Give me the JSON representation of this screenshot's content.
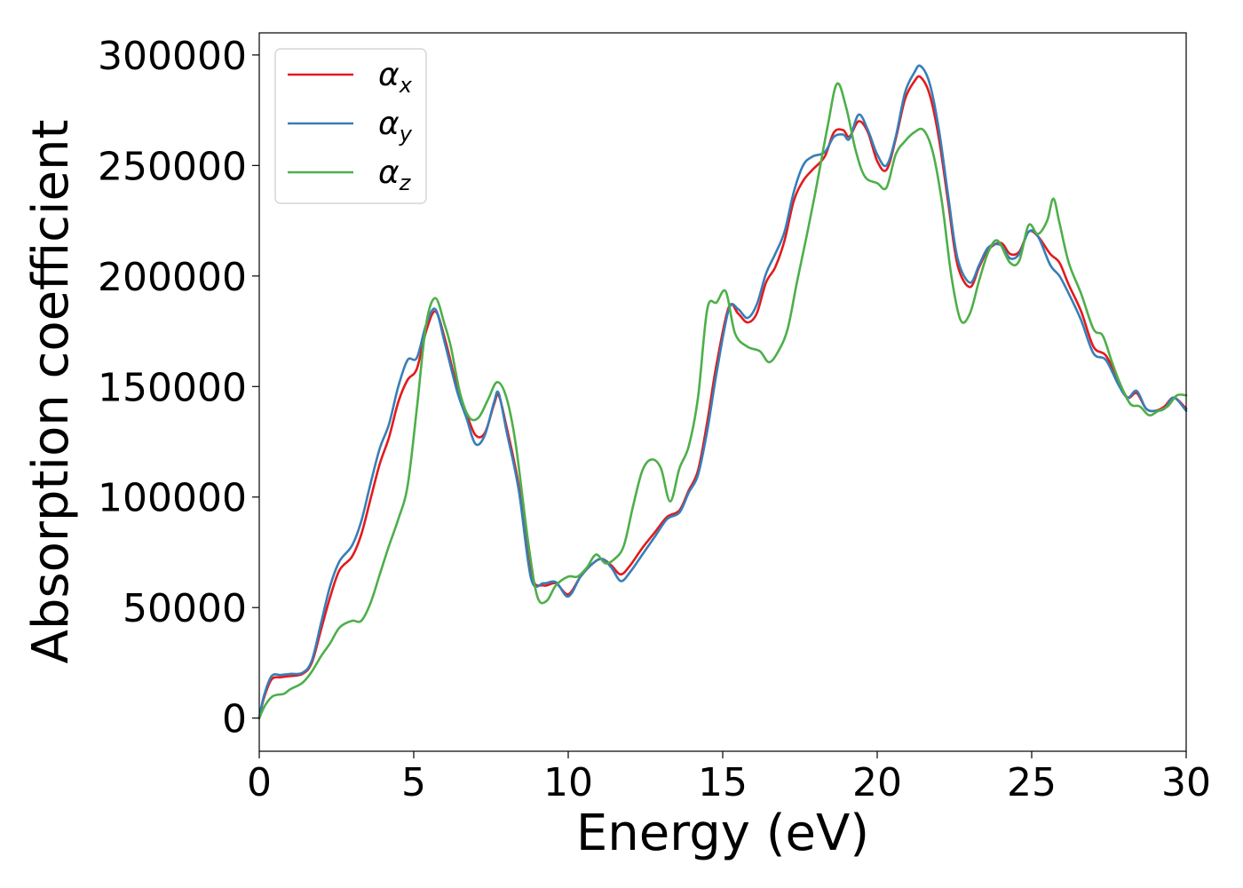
{
  "chart_data": {
    "type": "line",
    "title": "",
    "xlabel": "Energy (eV)",
    "ylabel": "Absorption coefficient",
    "xlim": [
      0,
      30
    ],
    "ylim": [
      -15000,
      310000
    ],
    "xticks": [
      0,
      5,
      10,
      15,
      20,
      25,
      30
    ],
    "yticks": [
      0,
      50000,
      100000,
      150000,
      200000,
      250000,
      300000
    ],
    "grid": false,
    "legend_position": "top-left",
    "series": [
      {
        "name": "αx",
        "symbol": "α",
        "subscript": "x",
        "color": "#e41a1c",
        "points": [
          [
            0,
            0
          ],
          [
            0.15,
            9000
          ],
          [
            0.4,
            17500
          ],
          [
            0.7,
            18500
          ],
          [
            1.0,
            19000
          ],
          [
            1.4,
            20000
          ],
          [
            1.7,
            25000
          ],
          [
            2.0,
            40000
          ],
          [
            2.3,
            55000
          ],
          [
            2.6,
            67000
          ],
          [
            3.0,
            73000
          ],
          [
            3.3,
            83000
          ],
          [
            3.6,
            99000
          ],
          [
            3.9,
            115000
          ],
          [
            4.2,
            127000
          ],
          [
            4.5,
            143000
          ],
          [
            4.8,
            153000
          ],
          [
            5.1,
            158000
          ],
          [
            5.4,
            175000
          ],
          [
            5.7,
            184000
          ],
          [
            6.0,
            172000
          ],
          [
            6.4,
            150000
          ],
          [
            6.7,
            138000
          ],
          [
            7.0,
            128000
          ],
          [
            7.3,
            129000
          ],
          [
            7.6,
            142000
          ],
          [
            7.75,
            146000
          ],
          [
            8.0,
            132000
          ],
          [
            8.4,
            105000
          ],
          [
            8.8,
            65000
          ],
          [
            9.2,
            60000
          ],
          [
            9.6,
            61000
          ],
          [
            10.0,
            56000
          ],
          [
            10.4,
            64000
          ],
          [
            10.8,
            70000
          ],
          [
            11.1,
            72000
          ],
          [
            11.4,
            69000
          ],
          [
            11.7,
            65000
          ],
          [
            12.0,
            69000
          ],
          [
            12.4,
            77000
          ],
          [
            12.8,
            84000
          ],
          [
            13.2,
            91000
          ],
          [
            13.6,
            94000
          ],
          [
            13.9,
            103000
          ],
          [
            14.2,
            112000
          ],
          [
            14.5,
            134000
          ],
          [
            14.8,
            160000
          ],
          [
            15.2,
            186000
          ],
          [
            15.5,
            183000
          ],
          [
            15.8,
            179000
          ],
          [
            16.1,
            183000
          ],
          [
            16.4,
            197000
          ],
          [
            16.7,
            204000
          ],
          [
            17.0,
            216000
          ],
          [
            17.3,
            234000
          ],
          [
            17.6,
            243000
          ],
          [
            17.9,
            248000
          ],
          [
            18.3,
            254000
          ],
          [
            18.6,
            265000
          ],
          [
            18.9,
            266000
          ],
          [
            19.1,
            263000
          ],
          [
            19.4,
            270000
          ],
          [
            19.7,
            265000
          ],
          [
            20.0,
            252000
          ],
          [
            20.3,
            248000
          ],
          [
            20.6,
            262000
          ],
          [
            20.9,
            280000
          ],
          [
            21.2,
            288000
          ],
          [
            21.4,
            290000
          ],
          [
            21.7,
            282000
          ],
          [
            22.0,
            262000
          ],
          [
            22.3,
            233000
          ],
          [
            22.6,
            205000
          ],
          [
            23.0,
            195000
          ],
          [
            23.3,
            204000
          ],
          [
            23.6,
            212000
          ],
          [
            24.0,
            215000
          ],
          [
            24.3,
            210000
          ],
          [
            24.6,
            211000
          ],
          [
            24.9,
            220000
          ],
          [
            25.2,
            218000
          ],
          [
            25.6,
            210000
          ],
          [
            25.9,
            206000
          ],
          [
            26.2,
            196000
          ],
          [
            26.6,
            184000
          ],
          [
            27.0,
            168000
          ],
          [
            27.4,
            164000
          ],
          [
            27.8,
            153000
          ],
          [
            28.1,
            145000
          ],
          [
            28.4,
            147000
          ],
          [
            28.7,
            140000
          ],
          [
            29.0,
            139000
          ],
          [
            29.3,
            141000
          ],
          [
            29.6,
            145000
          ],
          [
            30.0,
            140000
          ]
        ]
      },
      {
        "name": "αy",
        "symbol": "α",
        "subscript": "y",
        "color": "#377eb8",
        "points": [
          [
            0,
            0
          ],
          [
            0.15,
            10000
          ],
          [
            0.4,
            19000
          ],
          [
            0.7,
            19500
          ],
          [
            1.0,
            20000
          ],
          [
            1.4,
            20500
          ],
          [
            1.7,
            26000
          ],
          [
            2.0,
            43000
          ],
          [
            2.3,
            60000
          ],
          [
            2.6,
            71000
          ],
          [
            3.0,
            78000
          ],
          [
            3.3,
            89000
          ],
          [
            3.6,
            106000
          ],
          [
            3.9,
            122000
          ],
          [
            4.2,
            133000
          ],
          [
            4.5,
            150000
          ],
          [
            4.8,
            162000
          ],
          [
            5.1,
            163000
          ],
          [
            5.4,
            178000
          ],
          [
            5.7,
            185000
          ],
          [
            6.0,
            170000
          ],
          [
            6.4,
            148000
          ],
          [
            6.7,
            136000
          ],
          [
            7.0,
            124000
          ],
          [
            7.3,
            128000
          ],
          [
            7.6,
            143000
          ],
          [
            7.75,
            147000
          ],
          [
            8.0,
            130000
          ],
          [
            8.4,
            103000
          ],
          [
            8.8,
            63000
          ],
          [
            9.2,
            61000
          ],
          [
            9.6,
            61500
          ],
          [
            10.0,
            55000
          ],
          [
            10.4,
            64000
          ],
          [
            10.8,
            70000
          ],
          [
            11.1,
            72000
          ],
          [
            11.4,
            68000
          ],
          [
            11.7,
            62000
          ],
          [
            12.0,
            66000
          ],
          [
            12.4,
            74000
          ],
          [
            12.8,
            82000
          ],
          [
            13.2,
            90000
          ],
          [
            13.6,
            93000
          ],
          [
            13.9,
            102000
          ],
          [
            14.2,
            110000
          ],
          [
            14.5,
            130000
          ],
          [
            14.8,
            156000
          ],
          [
            15.2,
            185000
          ],
          [
            15.5,
            185000
          ],
          [
            15.8,
            181000
          ],
          [
            16.1,
            187000
          ],
          [
            16.4,
            201000
          ],
          [
            16.7,
            210000
          ],
          [
            17.0,
            220000
          ],
          [
            17.3,
            238000
          ],
          [
            17.6,
            250000
          ],
          [
            17.9,
            254000
          ],
          [
            18.3,
            256000
          ],
          [
            18.6,
            263000
          ],
          [
            18.9,
            264000
          ],
          [
            19.1,
            262000
          ],
          [
            19.4,
            273000
          ],
          [
            19.7,
            266000
          ],
          [
            20.0,
            255000
          ],
          [
            20.3,
            250000
          ],
          [
            20.6,
            263000
          ],
          [
            20.9,
            283000
          ],
          [
            21.2,
            292000
          ],
          [
            21.4,
            295000
          ],
          [
            21.7,
            287000
          ],
          [
            22.0,
            266000
          ],
          [
            22.3,
            236000
          ],
          [
            22.6,
            208000
          ],
          [
            23.0,
            197000
          ],
          [
            23.3,
            205000
          ],
          [
            23.6,
            213000
          ],
          [
            24.0,
            214000
          ],
          [
            24.3,
            208000
          ],
          [
            24.6,
            210000
          ],
          [
            24.9,
            220000
          ],
          [
            25.2,
            218000
          ],
          [
            25.6,
            205000
          ],
          [
            25.9,
            200000
          ],
          [
            26.2,
            192000
          ],
          [
            26.6,
            180000
          ],
          [
            27.0,
            165000
          ],
          [
            27.4,
            162000
          ],
          [
            27.8,
            151000
          ],
          [
            28.1,
            145000
          ],
          [
            28.4,
            148000
          ],
          [
            28.7,
            140000
          ],
          [
            29.0,
            139000
          ],
          [
            29.3,
            140000
          ],
          [
            29.6,
            145000
          ],
          [
            30.0,
            139000
          ]
        ]
      },
      {
        "name": "αz",
        "symbol": "α",
        "subscript": "z",
        "color": "#4daf4a",
        "points": [
          [
            0,
            0
          ],
          [
            0.2,
            6000
          ],
          [
            0.45,
            10000
          ],
          [
            0.8,
            11000
          ],
          [
            1.0,
            13000
          ],
          [
            1.4,
            16000
          ],
          [
            1.7,
            21000
          ],
          [
            2.0,
            28000
          ],
          [
            2.3,
            34000
          ],
          [
            2.6,
            41000
          ],
          [
            3.0,
            44000
          ],
          [
            3.3,
            44000
          ],
          [
            3.6,
            52000
          ],
          [
            3.9,
            65000
          ],
          [
            4.2,
            78000
          ],
          [
            4.5,
            90000
          ],
          [
            4.8,
            105000
          ],
          [
            5.1,
            140000
          ],
          [
            5.4,
            178000
          ],
          [
            5.7,
            190000
          ],
          [
            6.0,
            178000
          ],
          [
            6.2,
            168000
          ],
          [
            6.5,
            147000
          ],
          [
            6.8,
            136000
          ],
          [
            7.1,
            136000
          ],
          [
            7.4,
            144000
          ],
          [
            7.7,
            152000
          ],
          [
            8.0,
            145000
          ],
          [
            8.3,
            124000
          ],
          [
            8.7,
            80000
          ],
          [
            9.0,
            55000
          ],
          [
            9.3,
            53000
          ],
          [
            9.6,
            60000
          ],
          [
            10.0,
            64000
          ],
          [
            10.3,
            64000
          ],
          [
            10.6,
            68000
          ],
          [
            10.9,
            74000
          ],
          [
            11.2,
            70000
          ],
          [
            11.5,
            72000
          ],
          [
            11.8,
            78000
          ],
          [
            12.1,
            96000
          ],
          [
            12.4,
            112000
          ],
          [
            12.7,
            117000
          ],
          [
            13.0,
            113000
          ],
          [
            13.3,
            98000
          ],
          [
            13.6,
            113000
          ],
          [
            13.9,
            123000
          ],
          [
            14.2,
            145000
          ],
          [
            14.5,
            185000
          ],
          [
            14.8,
            188000
          ],
          [
            15.1,
            193000
          ],
          [
            15.4,
            174000
          ],
          [
            15.8,
            168000
          ],
          [
            16.2,
            166000
          ],
          [
            16.5,
            161000
          ],
          [
            16.8,
            166000
          ],
          [
            17.1,
            176000
          ],
          [
            17.4,
            197000
          ],
          [
            17.7,
            217000
          ],
          [
            18.0,
            238000
          ],
          [
            18.4,
            268000
          ],
          [
            18.7,
            287000
          ],
          [
            19.0,
            276000
          ],
          [
            19.3,
            257000
          ],
          [
            19.6,
            245000
          ],
          [
            20.0,
            242000
          ],
          [
            20.3,
            240000
          ],
          [
            20.6,
            255000
          ],
          [
            20.9,
            261000
          ],
          [
            21.2,
            265000
          ],
          [
            21.5,
            266000
          ],
          [
            21.8,
            256000
          ],
          [
            22.1,
            233000
          ],
          [
            22.4,
            200000
          ],
          [
            22.7,
            180000
          ],
          [
            23.0,
            183000
          ],
          [
            23.3,
            198000
          ],
          [
            23.6,
            211000
          ],
          [
            23.9,
            216000
          ],
          [
            24.3,
            206000
          ],
          [
            24.6,
            207000
          ],
          [
            24.9,
            223000
          ],
          [
            25.2,
            219000
          ],
          [
            25.5,
            225000
          ],
          [
            25.7,
            235000
          ],
          [
            25.9,
            224000
          ],
          [
            26.2,
            206000
          ],
          [
            26.6,
            192000
          ],
          [
            27.0,
            176000
          ],
          [
            27.3,
            173000
          ],
          [
            27.6,
            161000
          ],
          [
            27.9,
            150000
          ],
          [
            28.2,
            142000
          ],
          [
            28.5,
            141000
          ],
          [
            28.8,
            137000
          ],
          [
            29.1,
            139000
          ],
          [
            29.4,
            141000
          ],
          [
            29.7,
            146000
          ],
          [
            30.0,
            146000
          ]
        ]
      }
    ]
  }
}
